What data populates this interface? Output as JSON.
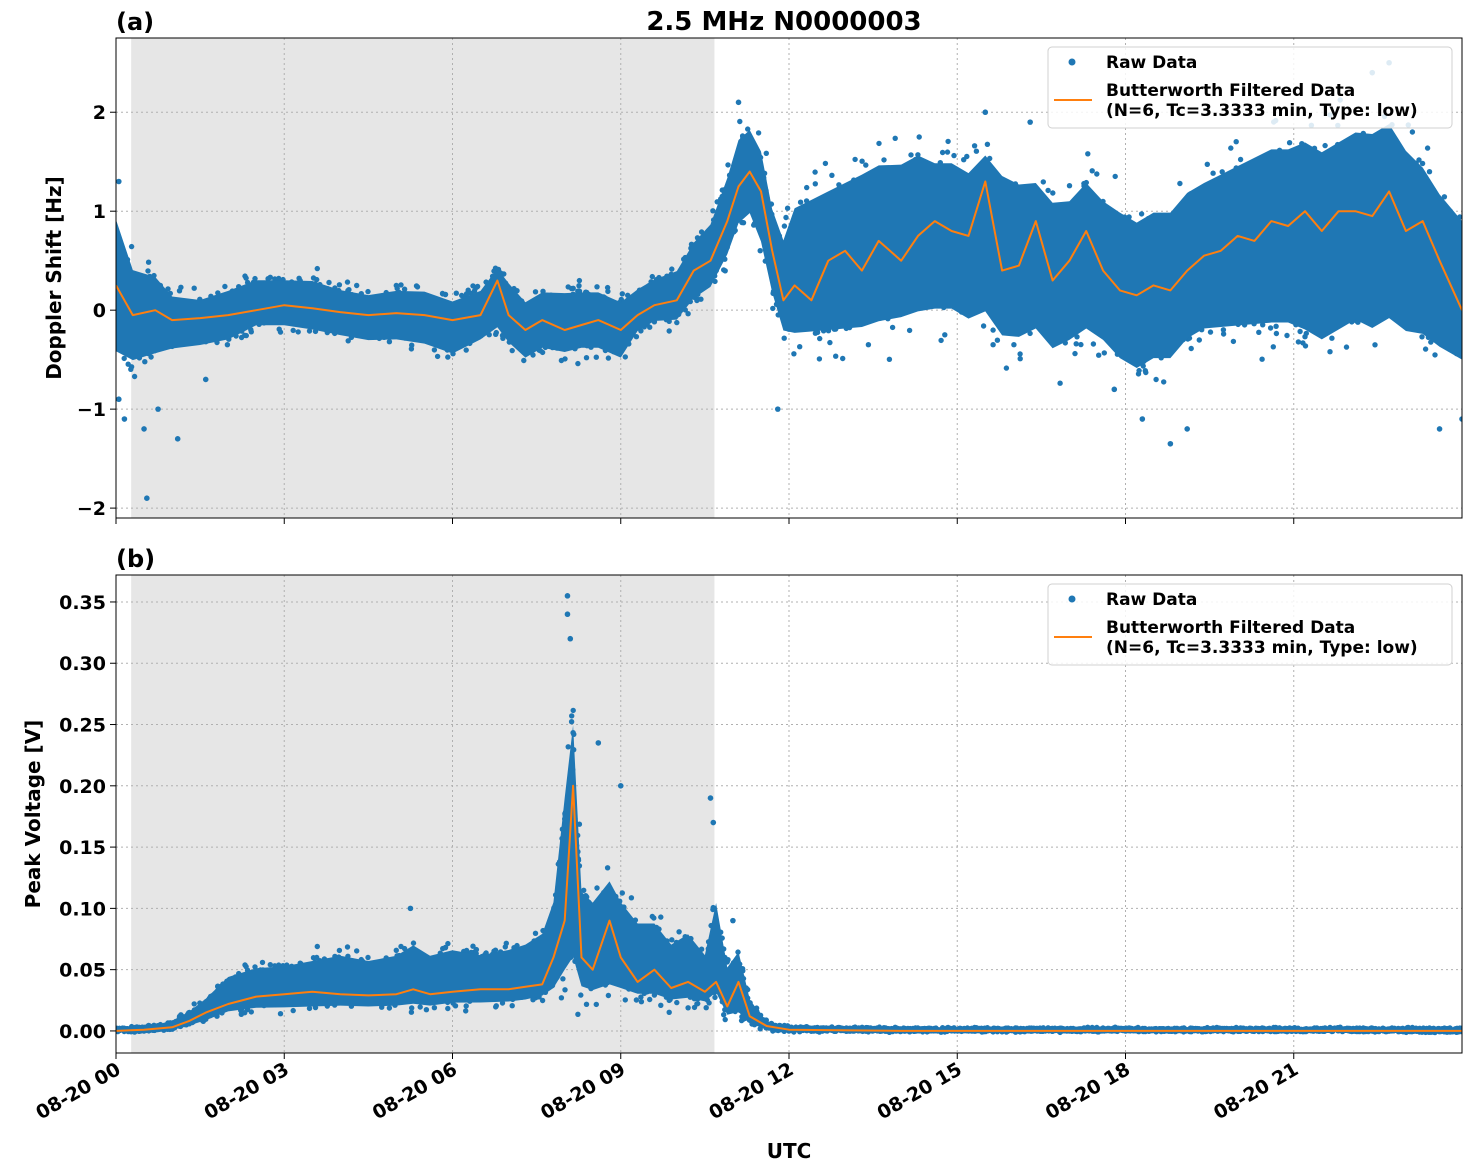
{
  "chart_data": {
    "title": "2.5 MHz N0000003",
    "xlabel": "UTC",
    "x_ticks": [
      "08-20 00",
      "08-20 03",
      "08-20 06",
      "08-20 09",
      "08-20 12",
      "08-20 15",
      "08-20 18",
      "08-20 21"
    ],
    "x_tick_hours": [
      0,
      3,
      6,
      9,
      12,
      15,
      18,
      21
    ],
    "xlim_hours": [
      0,
      24
    ],
    "night_shading_hours": [
      0.27,
      10.67
    ],
    "grid": true,
    "colors": {
      "raw": "#1f77b4",
      "filtered": "#ff7f0e",
      "shade": "#e6e6e6"
    },
    "legend": {
      "position": "top-right",
      "raw_label": "Raw Data",
      "filtered_label_line1": "Butterworth Filtered Data",
      "filtered_label_line2": "(N=6, Tc=3.3333 min, Type: low)"
    },
    "panels": [
      {
        "id": "a",
        "label": "(a)",
        "type": "scatter+line",
        "ylabel": "Doppler Shift [Hz]",
        "ylim": [
          -2.1,
          2.75
        ],
        "y_ticks": [
          -2,
          -1,
          0,
          1,
          2
        ],
        "y_tick_labels": [
          "−2",
          "−1",
          "0",
          "1",
          "2"
        ],
        "filtered_series": {
          "name": "Butterworth Filtered Data",
          "hours": [
            0,
            0.3,
            0.7,
            1,
            1.5,
            2,
            2.5,
            3,
            3.5,
            4,
            4.5,
            5,
            5.5,
            6,
            6.5,
            6.8,
            7,
            7.3,
            7.6,
            8,
            8.3,
            8.6,
            9,
            9.3,
            9.6,
            10,
            10.3,
            10.6,
            10.9,
            11.1,
            11.3,
            11.5,
            11.7,
            11.9,
            12.1,
            12.4,
            12.7,
            13,
            13.3,
            13.6,
            14,
            14.3,
            14.6,
            14.9,
            15.2,
            15.5,
            15.8,
            16.1,
            16.4,
            16.7,
            17,
            17.3,
            17.6,
            17.9,
            18.2,
            18.5,
            18.8,
            19.1,
            19.4,
            19.7,
            20,
            20.3,
            20.6,
            20.9,
            21.2,
            21.5,
            21.8,
            22.1,
            22.4,
            22.7,
            23,
            23.3,
            23.6,
            24
          ],
          "values": [
            0.25,
            -0.05,
            0.0,
            -0.1,
            -0.08,
            -0.05,
            0.0,
            0.05,
            0.02,
            -0.02,
            -0.05,
            -0.03,
            -0.05,
            -0.1,
            -0.05,
            0.3,
            -0.05,
            -0.2,
            -0.1,
            -0.2,
            -0.15,
            -0.1,
            -0.2,
            -0.05,
            0.05,
            0.1,
            0.4,
            0.5,
            0.9,
            1.25,
            1.4,
            1.2,
            0.6,
            0.1,
            0.25,
            0.1,
            0.5,
            0.6,
            0.4,
            0.7,
            0.5,
            0.75,
            0.9,
            0.8,
            0.75,
            1.3,
            0.4,
            0.45,
            0.9,
            0.3,
            0.5,
            0.8,
            0.4,
            0.2,
            0.15,
            0.25,
            0.2,
            0.4,
            0.55,
            0.6,
            0.75,
            0.7,
            0.9,
            0.85,
            1.0,
            0.8,
            1.0,
            1.0,
            0.95,
            1.2,
            0.8,
            0.9,
            0.5,
            0.0
          ]
        },
        "raw_envelope": {
          "name": "Raw Data",
          "hours": [
            0,
            0.3,
            0.7,
            1,
            1.5,
            2,
            2.5,
            3,
            3.5,
            4,
            4.5,
            5,
            5.5,
            6,
            6.5,
            6.8,
            7,
            7.3,
            7.6,
            8,
            8.3,
            8.6,
            9,
            9.3,
            9.6,
            10,
            10.3,
            10.6,
            10.9,
            11.1,
            11.3,
            11.5,
            11.7,
            11.9,
            12.1,
            12.4,
            12.7,
            13,
            13.3,
            13.6,
            14,
            14.3,
            14.6,
            14.9,
            15.2,
            15.5,
            15.8,
            16.1,
            16.4,
            16.7,
            17,
            17.3,
            17.6,
            17.9,
            18.2,
            18.5,
            18.8,
            19.1,
            19.4,
            19.7,
            20,
            20.3,
            20.6,
            20.9,
            21.2,
            21.5,
            21.8,
            22.1,
            22.4,
            22.7,
            23,
            23.3,
            23.6,
            24
          ],
          "upper": [
            1.2,
            0.6,
            0.5,
            0.25,
            0.2,
            0.3,
            0.4,
            0.4,
            0.4,
            0.3,
            0.25,
            0.3,
            0.3,
            0.2,
            0.3,
            0.55,
            0.4,
            0.2,
            0.3,
            0.3,
            0.3,
            0.3,
            0.2,
            0.3,
            0.4,
            0.5,
            0.8,
            1.0,
            1.5,
            1.9,
            2.0,
            1.8,
            1.2,
            0.9,
            1.3,
            1.4,
            1.5,
            1.6,
            1.7,
            1.8,
            1.8,
            1.9,
            1.8,
            1.8,
            1.7,
            1.9,
            1.7,
            1.6,
            1.6,
            1.4,
            1.4,
            1.6,
            1.4,
            1.3,
            1.2,
            1.3,
            1.3,
            1.5,
            1.6,
            1.7,
            1.8,
            1.9,
            2.0,
            2.0,
            2.1,
            2.0,
            2.1,
            2.2,
            2.2,
            2.3,
            2.0,
            1.8,
            1.5,
            1.2
          ],
          "lower": [
            -0.7,
            -0.7,
            -0.6,
            -0.5,
            -0.45,
            -0.4,
            -0.25,
            -0.25,
            -0.3,
            -0.35,
            -0.4,
            -0.4,
            -0.45,
            -0.55,
            -0.4,
            -0.3,
            -0.45,
            -0.6,
            -0.5,
            -0.55,
            -0.5,
            -0.5,
            -0.6,
            -0.3,
            -0.2,
            -0.2,
            0.0,
            0.1,
            0.4,
            0.7,
            0.8,
            0.5,
            0.0,
            -0.4,
            -0.5,
            -0.5,
            -0.5,
            -0.5,
            -0.5,
            -0.45,
            -0.4,
            -0.35,
            -0.3,
            -0.3,
            -0.4,
            -0.35,
            -0.6,
            -0.6,
            -0.5,
            -0.7,
            -0.6,
            -0.5,
            -0.6,
            -0.8,
            -0.9,
            -0.8,
            -0.8,
            -0.6,
            -0.5,
            -0.5,
            -0.5,
            -0.5,
            -0.5,
            -0.5,
            -0.6,
            -0.7,
            -0.6,
            -0.5,
            -0.6,
            -0.5,
            -0.6,
            -0.6,
            -0.7,
            -0.8
          ]
        },
        "raw_outliers": [
          [
            0.05,
            1.3
          ],
          [
            0.05,
            -0.9
          ],
          [
            0.15,
            -1.1
          ],
          [
            0.5,
            -1.2
          ],
          [
            0.55,
            -1.9
          ],
          [
            0.75,
            -1.0
          ],
          [
            1.1,
            -1.3
          ],
          [
            1.6,
            -0.7
          ],
          [
            11.1,
            2.1
          ],
          [
            11.8,
            -1.0
          ],
          [
            15.5,
            2.0
          ],
          [
            16.3,
            1.9
          ],
          [
            17.8,
            -0.8
          ],
          [
            18.3,
            -1.1
          ],
          [
            18.8,
            -1.35
          ],
          [
            19.1,
            -1.2
          ],
          [
            22.4,
            2.4
          ],
          [
            22.7,
            2.5
          ],
          [
            23.6,
            -1.2
          ],
          [
            24.0,
            -1.1
          ]
        ]
      },
      {
        "id": "b",
        "label": "(b)",
        "type": "scatter+line",
        "ylabel": "Peak Voltage [V]",
        "ylim": [
          -0.018,
          0.372
        ],
        "y_ticks": [
          0,
          0.05,
          0.1,
          0.15,
          0.2,
          0.25,
          0.3,
          0.35
        ],
        "y_tick_labels": [
          "0.00",
          "0.05",
          "0.10",
          "0.15",
          "0.20",
          "0.25",
          "0.30",
          "0.35"
        ],
        "filtered_series": {
          "name": "Butterworth Filtered Data",
          "hours": [
            0,
            0.5,
            1,
            1.3,
            1.6,
            2,
            2.5,
            3,
            3.5,
            4,
            4.5,
            5,
            5.3,
            5.6,
            6,
            6.5,
            7,
            7.3,
            7.6,
            7.8,
            8.0,
            8.15,
            8.3,
            8.5,
            8.8,
            9.0,
            9.3,
            9.6,
            9.9,
            10.2,
            10.5,
            10.7,
            10.9,
            11.1,
            11.3,
            11.6,
            12,
            14,
            16,
            18,
            20,
            22,
            24
          ],
          "values": [
            0.0,
            0.001,
            0.003,
            0.008,
            0.015,
            0.022,
            0.028,
            0.03,
            0.032,
            0.03,
            0.029,
            0.03,
            0.034,
            0.03,
            0.032,
            0.034,
            0.034,
            0.036,
            0.038,
            0.06,
            0.09,
            0.2,
            0.06,
            0.05,
            0.09,
            0.06,
            0.04,
            0.05,
            0.035,
            0.04,
            0.032,
            0.04,
            0.02,
            0.04,
            0.012,
            0.004,
            0.001,
            0.0,
            0.0,
            0.0,
            0.0,
            0.0,
            0.0
          ]
        },
        "raw_envelope": {
          "name": "Raw Data",
          "hours": [
            0,
            0.5,
            1,
            1.3,
            1.6,
            2,
            2.5,
            3,
            3.5,
            4,
            4.5,
            5,
            5.3,
            5.6,
            6,
            6.5,
            7,
            7.3,
            7.6,
            7.8,
            8.0,
            8.15,
            8.3,
            8.5,
            8.8,
            9.0,
            9.3,
            9.6,
            9.9,
            10.2,
            10.5,
            10.7,
            10.9,
            11.1,
            11.3,
            11.6,
            12,
            14,
            16,
            18,
            20,
            22,
            24
          ],
          "upper": [
            0.003,
            0.004,
            0.008,
            0.018,
            0.03,
            0.05,
            0.058,
            0.06,
            0.065,
            0.07,
            0.065,
            0.07,
            0.08,
            0.07,
            0.075,
            0.07,
            0.075,
            0.08,
            0.09,
            0.12,
            0.22,
            0.29,
            0.13,
            0.12,
            0.14,
            0.12,
            0.1,
            0.1,
            0.08,
            0.09,
            0.07,
            0.12,
            0.06,
            0.075,
            0.03,
            0.008,
            0.004,
            0.003,
            0.003,
            0.003,
            0.003,
            0.003,
            0.003
          ],
          "lower": [
            -0.001,
            -0.001,
            0.0,
            0.002,
            0.005,
            0.01,
            0.012,
            0.012,
            0.012,
            0.012,
            0.012,
            0.012,
            0.012,
            0.012,
            0.014,
            0.015,
            0.015,
            0.016,
            0.018,
            0.02,
            0.02,
            0.02,
            0.02,
            0.018,
            0.02,
            0.02,
            0.018,
            0.018,
            0.016,
            0.016,
            0.016,
            0.016,
            0.005,
            0.005,
            0.002,
            0.0,
            -0.001,
            -0.001,
            -0.001,
            -0.001,
            -0.001,
            -0.001,
            -0.002
          ]
        },
        "raw_outliers": [
          [
            8.05,
            0.355
          ],
          [
            8.05,
            0.34
          ],
          [
            8.1,
            0.32
          ],
          [
            8.6,
            0.235
          ],
          [
            9.0,
            0.2
          ],
          [
            10.6,
            0.19
          ],
          [
            10.65,
            0.17
          ],
          [
            5.25,
            0.1
          ],
          [
            11.0,
            0.09
          ]
        ]
      }
    ]
  }
}
